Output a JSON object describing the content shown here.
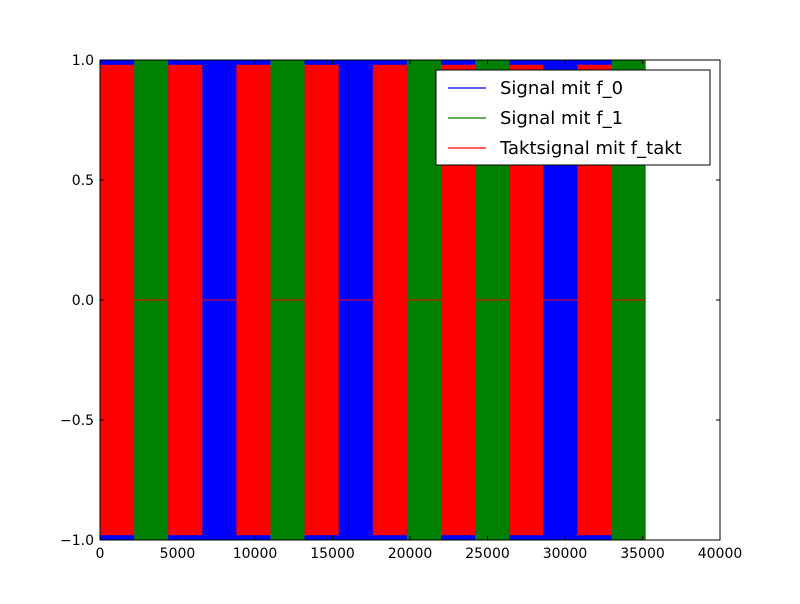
{
  "chart_data": {
    "type": "line",
    "title": "",
    "xlabel": "",
    "ylabel": "",
    "xlim": [
      0,
      40000
    ],
    "ylim": [
      -1.0,
      1.0
    ],
    "xticks": [
      0,
      5000,
      10000,
      15000,
      20000,
      25000,
      30000,
      35000,
      40000
    ],
    "xtick_labels": [
      "0",
      "5000",
      "10000",
      "15000",
      "20000",
      "25000",
      "30000",
      "35000",
      "40000"
    ],
    "yticks": [
      1.0,
      0.5,
      0.0,
      -0.5,
      -1.0
    ],
    "ytick_labels": [
      "1.0",
      "0.5",
      "0.0",
      "−0.5",
      "−1.0"
    ],
    "grid": false,
    "legend_position": "top-right",
    "series": [
      {
        "name": "Signal mit f_0",
        "color": "#0000ff",
        "amplitude": 1.0,
        "description_x_extent": [
          0,
          35200
        ]
      },
      {
        "name": "Signal mit f_1",
        "color": "#008000",
        "amplitude": 1.0,
        "active_intervals": [
          [
            2200,
            4400
          ],
          [
            11000,
            13200
          ],
          [
            19800,
            22000
          ],
          [
            24200,
            26400
          ],
          [
            33000,
            35200
          ]
        ]
      },
      {
        "name": "Taktsignal mit f_takt",
        "color": "#ff0000",
        "amplitude": 0.98,
        "high_intervals": [
          [
            0,
            2200
          ],
          [
            4400,
            6600
          ],
          [
            8800,
            11000
          ],
          [
            13200,
            15400
          ],
          [
            17600,
            19800
          ],
          [
            22000,
            24200
          ],
          [
            26400,
            28600
          ],
          [
            30800,
            33000
          ]
        ],
        "x_extent": [
          0,
          35200
        ]
      }
    ]
  }
}
